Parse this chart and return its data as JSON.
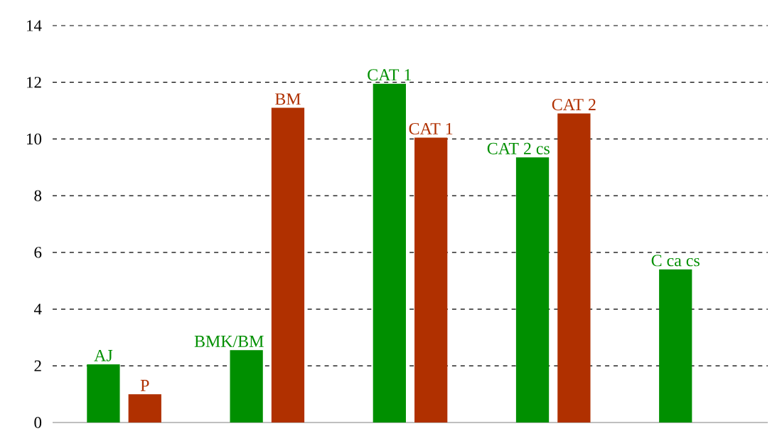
{
  "chart_data": {
    "type": "bar",
    "categories": [
      null,
      null,
      null,
      null,
      null
    ],
    "series": [
      {
        "color": "#008f00",
        "values": [
          2.05,
          2.55,
          11.95,
          9.35,
          5.4
        ],
        "value_labels": [
          "AJ",
          "BMK/BM",
          "CAT 1",
          "CAT 2 cs",
          "C ca cs"
        ]
      },
      {
        "color": "#b03000",
        "values": [
          1.0,
          11.1,
          10.05,
          10.9,
          null
        ],
        "value_labels": [
          "P",
          "BM",
          "CAT 1",
          "CAT 2",
          null
        ]
      }
    ],
    "ylim": [
      0,
      14
    ],
    "yticks": [
      0,
      2,
      4,
      6,
      8,
      10,
      12,
      14
    ],
    "grid": "y"
  }
}
